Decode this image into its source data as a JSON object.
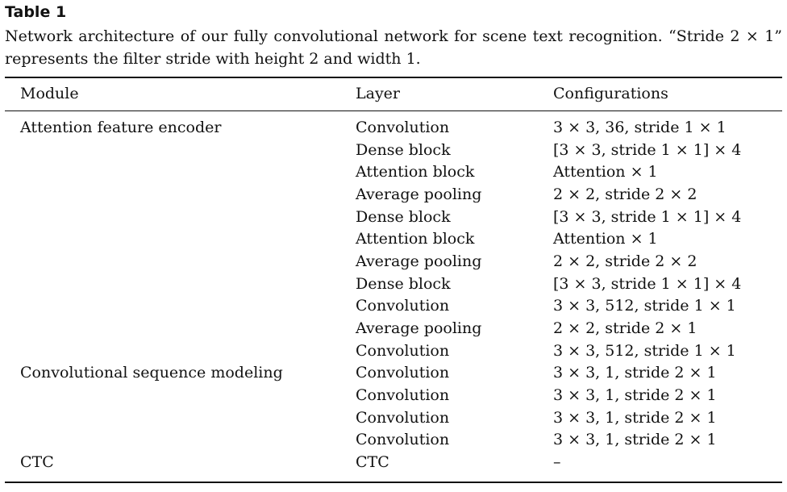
{
  "table": {
    "label": "Table 1",
    "caption": "Network architecture of our fully convolutional network for scene text recognition. “Stride 2 × 1” represents the filter stride with height 2 and width 1.",
    "headers": {
      "module": "Module",
      "layer": "Layer",
      "config": "Configurations"
    },
    "rows": [
      {
        "module": "Attention feature encoder",
        "layer": "Convolution",
        "config": "3 × 3, 36, stride 1 × 1"
      },
      {
        "module": "",
        "layer": "Dense block",
        "config": "[3 × 3, stride 1 × 1] × 4"
      },
      {
        "module": "",
        "layer": "Attention block",
        "config": "Attention × 1"
      },
      {
        "module": "",
        "layer": "Average pooling",
        "config": "2 × 2, stride 2 × 2"
      },
      {
        "module": "",
        "layer": "Dense block",
        "config": "[3 × 3, stride 1 × 1] × 4"
      },
      {
        "module": "",
        "layer": "Attention block",
        "config": "Attention × 1"
      },
      {
        "module": "",
        "layer": "Average pooling",
        "config": "2 × 2, stride 2 × 2"
      },
      {
        "module": "",
        "layer": "Dense block",
        "config": "[3 × 3, stride 1 × 1] × 4"
      },
      {
        "module": "",
        "layer": "Convolution",
        "config": "3 × 3, 512, stride 1 × 1"
      },
      {
        "module": "",
        "layer": "Average pooling",
        "config": "2 × 2, stride 2 × 1"
      },
      {
        "module": "",
        "layer": "Convolution",
        "config": "3 × 3, 512, stride 1 × 1"
      },
      {
        "module": "Convolutional sequence modeling",
        "layer": "Convolution",
        "config": "3 × 3, 1, stride 2 × 1"
      },
      {
        "module": "",
        "layer": "Convolution",
        "config": "3 × 3, 1, stride 2 × 1"
      },
      {
        "module": "",
        "layer": "Convolution",
        "config": "3 × 3, 1, stride 2 × 1"
      },
      {
        "module": "",
        "layer": "Convolution",
        "config": "3 × 3, 1, stride 2 × 1"
      },
      {
        "module": "CTC",
        "layer": "CTC",
        "config": "–"
      }
    ]
  }
}
